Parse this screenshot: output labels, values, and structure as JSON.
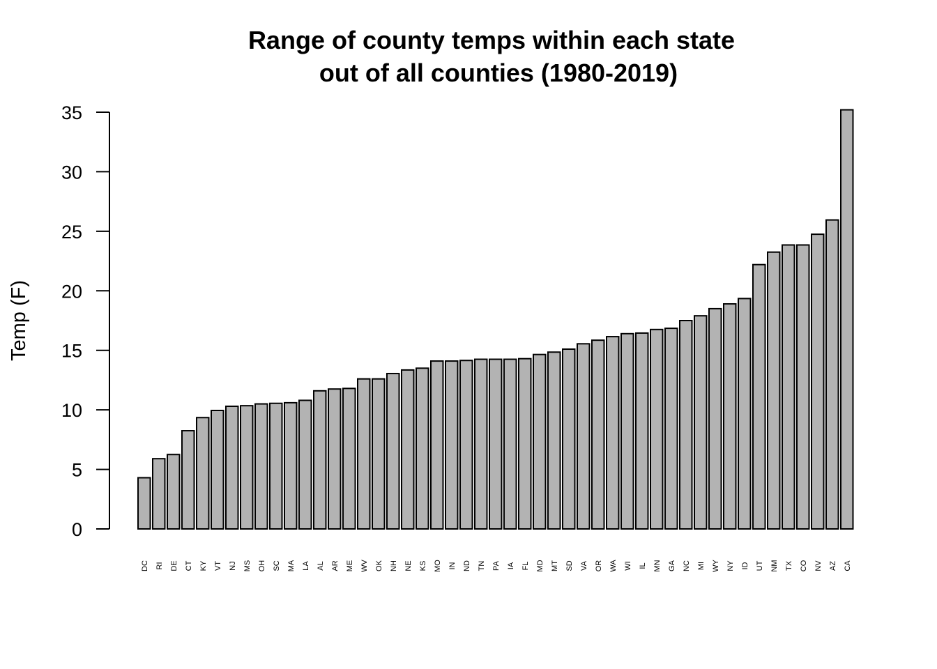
{
  "chart_data": {
    "type": "bar",
    "title_line1": "Range of county temps within each state",
    "title_line2": "out of all counties (1980-2019)",
    "xlabel": "",
    "ylabel": "Temp (F)",
    "ylim": [
      0,
      35
    ],
    "yticks": [
      0,
      5,
      10,
      15,
      20,
      25,
      30,
      35
    ],
    "grid": false,
    "categories": [
      "DC",
      "RI",
      "DE",
      "CT",
      "KY",
      "VT",
      "NJ",
      "MS",
      "OH",
      "SC",
      "MA",
      "LA",
      "AL",
      "AR",
      "ME",
      "WV",
      "OK",
      "NH",
      "NE",
      "KS",
      "MO",
      "IN",
      "ND",
      "TN",
      "PA",
      "IA",
      "FL",
      "MD",
      "MT",
      "SD",
      "VA",
      "OR",
      "WA",
      "WI",
      "IL",
      "MN",
      "GA",
      "NC",
      "MI",
      "WY",
      "NY",
      "ID",
      "UT",
      "NM",
      "TX",
      "CO",
      "NV",
      "AZ",
      "CA"
    ],
    "values": [
      4.3,
      5.9,
      6.25,
      8.25,
      9.35,
      9.95,
      10.3,
      10.35,
      10.5,
      10.55,
      10.6,
      10.8,
      11.6,
      11.75,
      11.8,
      12.6,
      12.6,
      13.05,
      13.35,
      13.5,
      14.1,
      14.1,
      14.15,
      14.25,
      14.25,
      14.25,
      14.3,
      14.65,
      14.85,
      15.1,
      15.55,
      15.85,
      16.15,
      16.4,
      16.45,
      16.75,
      16.85,
      17.5,
      17.9,
      18.5,
      18.9,
      19.35,
      22.2,
      23.25,
      23.85,
      23.85,
      24.75,
      25.95,
      35.2
    ],
    "bar_color": "#b3b3b3",
    "bar_edge_color": "#000000"
  }
}
